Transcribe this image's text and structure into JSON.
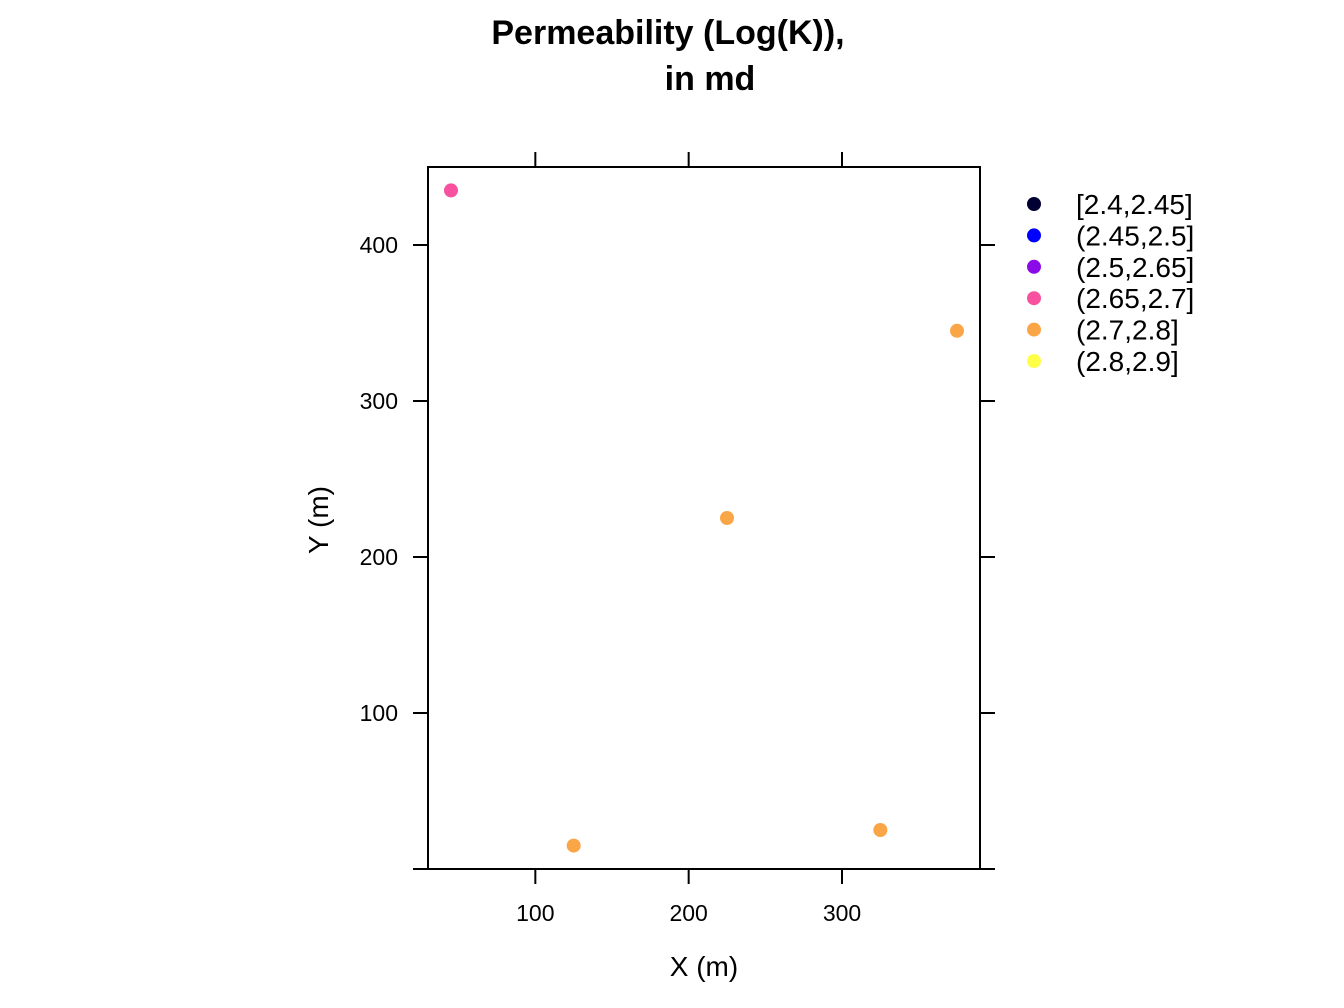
{
  "chart_data": {
    "type": "scatter",
    "title_lines": [
      "Permeability (Log(K)),",
      "in md"
    ],
    "xlabel": "X (m)",
    "ylabel": "Y (m)",
    "xlim": [
      30,
      390
    ],
    "ylim": [
      0,
      450
    ],
    "x_ticks": [
      100,
      200,
      300
    ],
    "y_ticks": [
      0,
      100,
      200,
      300,
      400
    ],
    "x_tick_labels": [
      "100",
      "200",
      "300"
    ],
    "y_tick_labels": [
      "",
      "100",
      "200",
      "300",
      "400"
    ],
    "grid": false,
    "legend_position": "right",
    "legend": [
      {
        "label": "[2.4,2.45]",
        "color": "#000033"
      },
      {
        "label": "(2.45,2.5]",
        "color": "#0000FF"
      },
      {
        "label": "(2.5,2.65]",
        "color": "#8B0AE8"
      },
      {
        "label": "(2.65,2.7]",
        "color": "#F8519F"
      },
      {
        "label": "(2.7,2.8]",
        "color": "#FBA646"
      },
      {
        "label": "(2.8,2.9]",
        "color": "#FFFF47"
      }
    ],
    "points": [
      {
        "x": 45,
        "y": 435,
        "class": 3
      },
      {
        "x": 375,
        "y": 345,
        "class": 4
      },
      {
        "x": 225,
        "y": 225,
        "class": 4
      },
      {
        "x": 125,
        "y": 15,
        "class": 4
      },
      {
        "x": 325,
        "y": 25,
        "class": 4
      }
    ]
  }
}
